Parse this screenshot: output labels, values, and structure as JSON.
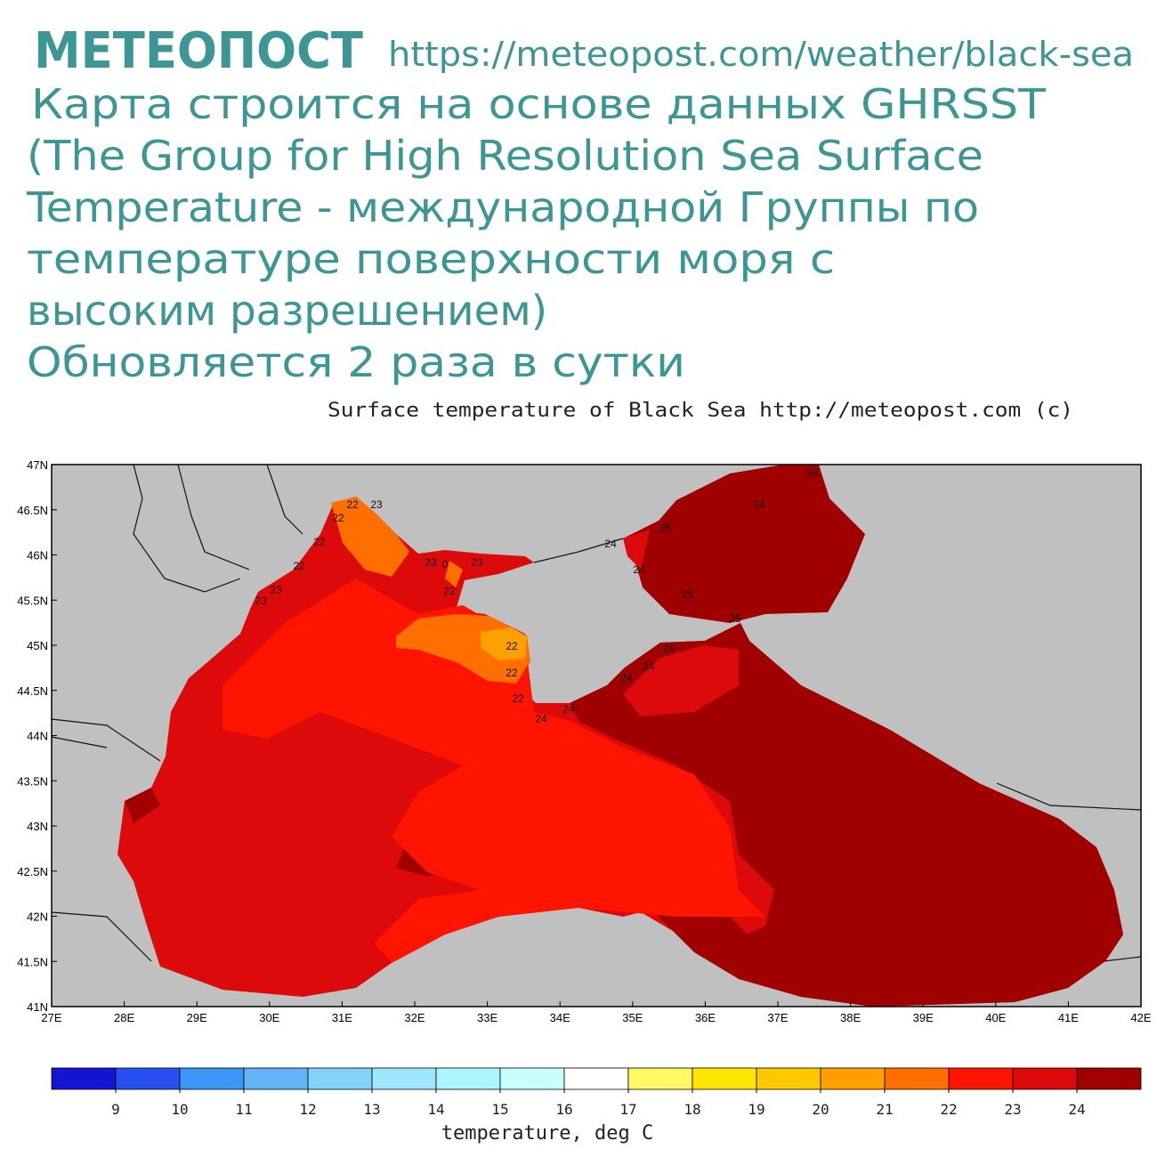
{
  "header": {
    "brand": "МЕТЕОПОСТ",
    "url": "https://meteopost.com/weather/black-sea",
    "description": [
      "Карта строится на основе данных GHRSST",
      "(The Group for High Resolution Sea Surface",
      "Temperature - международной Группы по",
      "температуре поверхности моря с",
      "высоким разрешением)",
      "Обновляется 2 раза в сутки"
    ]
  },
  "map": {
    "title": "Surface temperature of Black Sea  http://meteopost.com (c)",
    "xlim": [
      27,
      42
    ],
    "ylim": [
      41,
      47
    ],
    "xticks": [
      {
        "value": 27,
        "label": "27E"
      },
      {
        "value": 28,
        "label": "28E"
      },
      {
        "value": 29,
        "label": "29E"
      },
      {
        "value": 30,
        "label": "30E"
      },
      {
        "value": 31,
        "label": "31E"
      },
      {
        "value": 32,
        "label": "32E"
      },
      {
        "value": 33,
        "label": "33E"
      },
      {
        "value": 34,
        "label": "34E"
      },
      {
        "value": 35,
        "label": "35E"
      },
      {
        "value": 36,
        "label": "36E"
      },
      {
        "value": 37,
        "label": "37E"
      },
      {
        "value": 38,
        "label": "38E"
      },
      {
        "value": 39,
        "label": "39E"
      },
      {
        "value": 40,
        "label": "40E"
      },
      {
        "value": 41,
        "label": "41E"
      },
      {
        "value": 42,
        "label": "42E"
      }
    ],
    "yticks": [
      {
        "value": 47,
        "label": "47N"
      },
      {
        "value": 46.5,
        "label": "46.5N"
      },
      {
        "value": 46,
        "label": "46N"
      },
      {
        "value": 45.5,
        "label": "45.5N"
      },
      {
        "value": 45,
        "label": "45N"
      },
      {
        "value": 44.5,
        "label": "44.5N"
      },
      {
        "value": 44,
        "label": "44N"
      },
      {
        "value": 43.5,
        "label": "43.5N"
      },
      {
        "value": 43,
        "label": "43N"
      },
      {
        "value": 42.5,
        "label": "42.5N"
      },
      {
        "value": 42,
        "label": "42N"
      },
      {
        "value": 41.5,
        "label": "41.5N"
      },
      {
        "value": 41,
        "label": "41N"
      }
    ],
    "land_color": "#c0c0c0",
    "contour_labels": [
      "24",
      "24",
      "25",
      "24",
      "24",
      "25",
      "25",
      "22",
      "23",
      "22",
      "22",
      "22",
      "23",
      "0",
      "23",
      "22",
      "23",
      "23",
      "22",
      "22",
      "22",
      "24",
      "24",
      "24",
      "24",
      "24"
    ]
  },
  "colorbar": {
    "colors": [
      "#1414d2",
      "#2850f0",
      "#3c96f5",
      "#64b4f5",
      "#82d2fa",
      "#a0e6fa",
      "#aaf5ff",
      "#c8ffff",
      "#ffffff",
      "#fffa64",
      "#ffe600",
      "#ffc800",
      "#ffa000",
      "#ff6e00",
      "#ff1400",
      "#dc0a0a",
      "#a00000"
    ],
    "ticks": [
      9,
      10,
      11,
      12,
      13,
      14,
      15,
      16,
      17,
      18,
      19,
      20,
      21,
      22,
      23,
      24
    ],
    "label": "temperature, deg C"
  }
}
